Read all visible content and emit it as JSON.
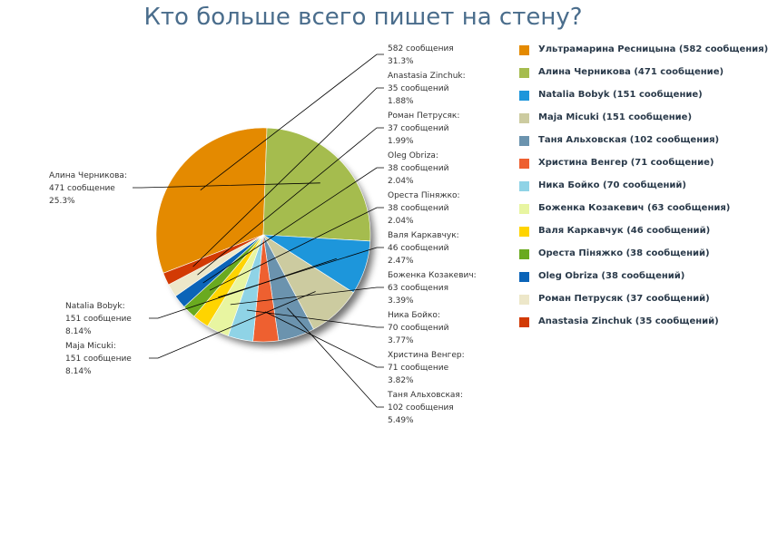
{
  "chart_data": {
    "type": "pie",
    "title": "Кто больше всего пишет на стену?",
    "slices": [
      {
        "name": "Ультрамарина Ресницына",
        "value": 582,
        "percent": "31.3%",
        "color": "#e48a00",
        "legend": "Ультрамарина Ресницына (582 сообщения)",
        "label": [
          "582 сообщения",
          "31.3%"
        ]
      },
      {
        "name": "Алина Черникова",
        "value": 471,
        "percent": "25.3%",
        "color": "#a5bc4e",
        "legend": "Алина Черникова (471 сообщение)",
        "label": [
          "Алина Черникова:",
          "471 сообщение",
          "25.3%"
        ]
      },
      {
        "name": "Natalia Bobyk",
        "value": 151,
        "percent": "8.14%",
        "color": "#1d96db",
        "legend": "Natalia Bobyk (151 сообщение)",
        "label": [
          "Natalia Bobyk:",
          "151 сообщение",
          "8.14%"
        ]
      },
      {
        "name": "Maja Micuki",
        "value": 151,
        "percent": "8.14%",
        "color": "#cccba0",
        "legend": "Maja Micuki (151 сообщение)",
        "label": [
          "Maja Micuki:",
          "151 сообщение",
          "8.14%"
        ]
      },
      {
        "name": "Таня Альховская",
        "value": 102,
        "percent": "5.49%",
        "color": "#6b93ae",
        "legend": "Таня Альховская (102 сообщения)",
        "label": [
          "Таня Альховская:",
          "102 сообщения",
          "5.49%"
        ]
      },
      {
        "name": "Христина Венгер",
        "value": 71,
        "percent": "3.82%",
        "color": "#ee6030",
        "legend": "Христина Венгер (71 сообщение)",
        "label": [
          "Христина Венгер:",
          "71 сообщение",
          "3.82%"
        ]
      },
      {
        "name": "Ника Бойко",
        "value": 70,
        "percent": "3.77%",
        "color": "#8fd3e6",
        "legend": "Ника Бойко (70 сообщений)",
        "label": [
          "Ника Бойко:",
          "70 сообщений",
          "3.77%"
        ]
      },
      {
        "name": "Боженка Козакевич",
        "value": 63,
        "percent": "3.39%",
        "color": "#e8f5a1",
        "legend": "Боженка Козакевич (63 сообщения)",
        "label": [
          "Боженка Козакевич:",
          "63 сообщения",
          "3.39%"
        ]
      },
      {
        "name": "Валя Каркавчук",
        "value": 46,
        "percent": "2.47%",
        "color": "#ffd400",
        "legend": "Валя Каркавчук (46 сообщений)",
        "label": [
          "Валя Каркавчук:",
          "46 сообщений",
          "2.47%"
        ]
      },
      {
        "name": "Ореста Пiняжко",
        "value": 38,
        "percent": "2.04%",
        "color": "#6aaa1f",
        "legend": "Ореста Пiняжко (38 сообщений)",
        "label": [
          "Ореста Пiняжко:",
          "38 сообщений",
          "2.04%"
        ]
      },
      {
        "name": "Oleg Obriza",
        "value": 38,
        "percent": "2.04%",
        "color": "#0b64b8",
        "legend": "Oleg Obriza (38 сообщений)",
        "label": [
          "Oleg Obriza:",
          "38 сообщений",
          "2.04%"
        ]
      },
      {
        "name": "Роман Петрусяк",
        "value": 37,
        "percent": "1.99%",
        "color": "#ede7c9",
        "legend": "Роман Петрусяк (37 сообщений)",
        "label": [
          "Роман Петрусяк:",
          "37 сообщений",
          "1.99%"
        ]
      },
      {
        "name": "Anastasia Zinchuk",
        "value": 35,
        "percent": "1.88%",
        "color": "#d23a04",
        "legend": "Anastasia Zinchuk (35 сообщений)",
        "label": [
          "Anastasia Zinchuk:",
          "35 сообщений",
          "1.88%"
        ]
      }
    ],
    "legend_position": "right"
  }
}
